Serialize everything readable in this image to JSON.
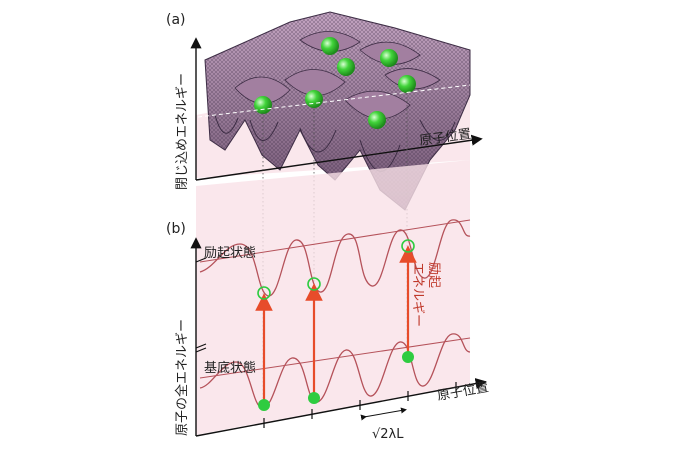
{
  "panel_a": {
    "label": "(a)",
    "y_axis_label": "閉じ込めエネルギー",
    "x_axis_label": "原子位置",
    "atoms_shown": 7
  },
  "panel_b": {
    "label": "(b)",
    "y_axis_label": "原子の全エネルギー",
    "x_axis_label": "原子位置",
    "excited_state_label": "励起状態",
    "ground_state_label": "基底状態",
    "excitation_energy_label_line1": "励起",
    "excitation_energy_label_line2": "エネルギー",
    "lattice_spacing_label": "√2λL",
    "transitions": 3
  },
  "colors": {
    "potential_curve": "#b5525a",
    "arrow": "#e74c2a",
    "atom": "#2ecc40",
    "pink_plane": "#f9e1e7",
    "surface": "#8a6f86"
  }
}
